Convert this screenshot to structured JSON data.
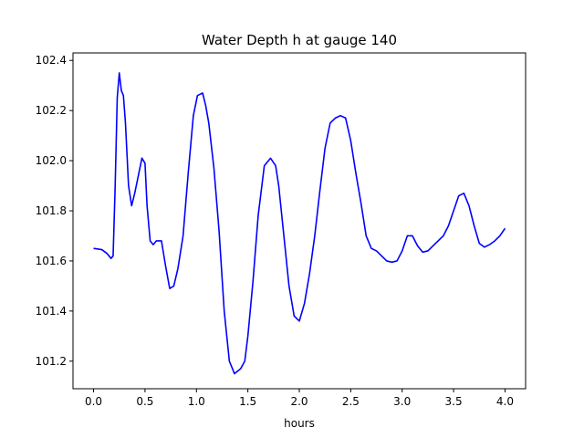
{
  "chart_data": {
    "type": "line",
    "title": "Water Depth h at gauge 140",
    "xlabel": "hours",
    "ylabel": "",
    "xlim": [
      -0.2,
      4.2
    ],
    "ylim": [
      101.09,
      102.43
    ],
    "xticks": [
      0.0,
      0.5,
      1.0,
      1.5,
      2.0,
      2.5,
      3.0,
      3.5,
      4.0
    ],
    "xtick_labels": [
      "0.0",
      "0.5",
      "1.0",
      "1.5",
      "2.0",
      "2.5",
      "3.0",
      "3.5",
      "4.0"
    ],
    "yticks": [
      101.2,
      101.4,
      101.6,
      101.8,
      102.0,
      102.2,
      102.4
    ],
    "ytick_labels": [
      "101.2",
      "101.4",
      "101.6",
      "101.8",
      "102.0",
      "102.2",
      "102.4"
    ],
    "grid": false,
    "legend": "none",
    "series": [
      {
        "color": "#0000ff",
        "x": [
          0.0,
          0.08,
          0.13,
          0.17,
          0.19,
          0.21,
          0.23,
          0.25,
          0.27,
          0.29,
          0.31,
          0.34,
          0.37,
          0.4,
          0.44,
          0.47,
          0.5,
          0.52,
          0.55,
          0.58,
          0.61,
          0.66,
          0.7,
          0.74,
          0.78,
          0.82,
          0.87,
          0.92,
          0.97,
          1.01,
          1.06,
          1.09,
          1.12,
          1.17,
          1.22,
          1.27,
          1.32,
          1.37,
          1.4,
          1.43,
          1.47,
          1.5,
          1.55,
          1.6,
          1.66,
          1.72,
          1.77,
          1.8,
          1.85,
          1.9,
          1.95,
          2.0,
          2.05,
          2.1,
          2.15,
          2.2,
          2.25,
          2.3,
          2.35,
          2.4,
          2.45,
          2.5,
          2.55,
          2.6,
          2.65,
          2.7,
          2.75,
          2.8,
          2.85,
          2.9,
          2.95,
          3.0,
          3.05,
          3.1,
          3.15,
          3.2,
          3.25,
          3.3,
          3.35,
          3.4,
          3.45,
          3.5,
          3.55,
          3.6,
          3.65,
          3.7,
          3.75,
          3.8,
          3.85,
          3.9,
          3.95,
          4.0
        ],
        "y": [
          101.65,
          101.645,
          101.63,
          101.61,
          101.62,
          101.9,
          102.25,
          102.35,
          102.28,
          102.26,
          102.15,
          101.9,
          101.82,
          101.87,
          101.95,
          102.01,
          101.99,
          101.82,
          101.68,
          101.665,
          101.68,
          101.68,
          101.58,
          101.49,
          101.5,
          101.57,
          101.7,
          101.95,
          102.18,
          102.26,
          102.27,
          102.22,
          102.15,
          101.97,
          101.72,
          101.4,
          101.2,
          101.15,
          101.16,
          101.17,
          101.2,
          101.3,
          101.52,
          101.78,
          101.98,
          102.01,
          101.98,
          101.9,
          101.7,
          101.5,
          101.38,
          101.36,
          101.43,
          101.55,
          101.7,
          101.88,
          102.05,
          102.15,
          102.17,
          102.18,
          102.17,
          102.08,
          101.95,
          101.83,
          101.7,
          101.65,
          101.64,
          101.62,
          101.6,
          101.595,
          101.6,
          101.64,
          101.7,
          101.7,
          101.66,
          101.635,
          101.64,
          101.66,
          101.68,
          101.7,
          101.74,
          101.8,
          101.86,
          101.87,
          101.82,
          101.74,
          101.67,
          101.655,
          101.665,
          101.68,
          101.7,
          101.73
        ]
      }
    ]
  }
}
